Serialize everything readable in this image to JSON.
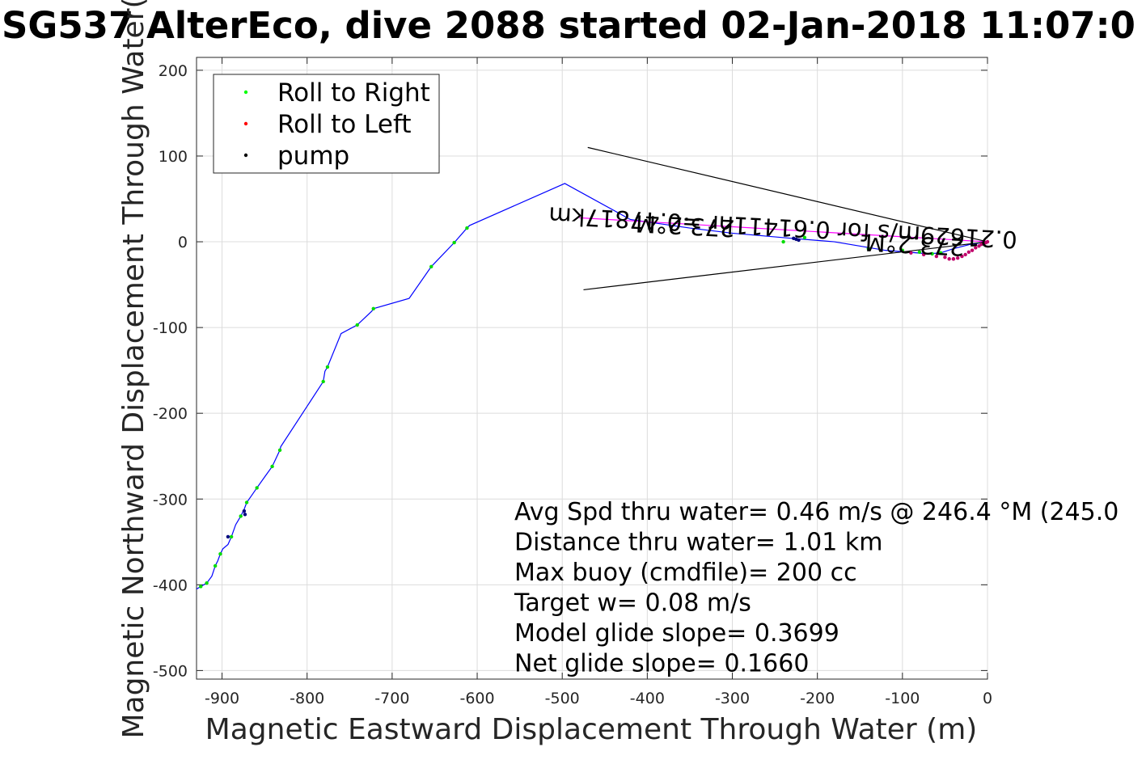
{
  "chart_data": {
    "type": "scatter",
    "title": "SG537 AlterEco, dive 2088 started 02-Jan-2018 11:07:0",
    "xlabel": "Magnetic Eastward Displacement Through Water (m)",
    "ylabel": "Magnetic Northward Displacement Through Water(",
    "xlim": [
      -930,
      0
    ],
    "ylim": [
      -510,
      215
    ],
    "xticks": [
      -900,
      -800,
      -700,
      -600,
      -500,
      -400,
      -300,
      -200,
      -100,
      0
    ],
    "yticks": [
      200,
      100,
      0,
      -100,
      -200,
      -300,
      -400,
      -500
    ],
    "grid": true,
    "legend_position": "top-left",
    "legend": [
      {
        "label": "Roll to Right",
        "color": "#00ff00"
      },
      {
        "label": "Roll to Left",
        "color": "#ff0000"
      },
      {
        "label": "pump",
        "color": "#000000"
      }
    ],
    "track": {
      "name": "track",
      "color": "#0000ff",
      "x": [
        -930,
        -925,
        -918,
        -912,
        -908,
        -905,
        -902,
        -899,
        -893,
        -889,
        -884,
        -878,
        -874,
        -871,
        -866,
        -859,
        -849,
        -841,
        -832,
        -831,
        -781,
        -779,
        -776,
        -760,
        -741,
        -724,
        -722,
        -680,
        -654,
        -627,
        -612,
        -609,
        -497,
        -420,
        -350,
        -300,
        -230,
        -180,
        -120,
        -70,
        -55,
        -40,
        -20,
        0
      ],
      "y": [
        -405,
        -402,
        -398,
        -390,
        -378,
        -372,
        -364,
        -358,
        -353,
        -344,
        -330,
        -320,
        -312,
        -304,
        -297,
        -287,
        -273,
        -262,
        -243,
        -239,
        -163,
        -151,
        -146,
        -107,
        -97,
        -81,
        -78,
        -66,
        -29,
        -1,
        16,
        19,
        68,
        26,
        16,
        10,
        4,
        0,
        -10,
        -14,
        -13,
        -8,
        -3,
        0
      ]
    },
    "roll_right_points": {
      "x": [
        -925,
        -918,
        -908,
        -902,
        -889,
        -878,
        -871,
        -859,
        -841,
        -832,
        -781,
        -776,
        -741,
        -722,
        -654,
        -627,
        -612,
        -240,
        -215,
        -140,
        -100,
        -80,
        -65,
        -55
      ],
      "y": [
        -402,
        -398,
        -378,
        -364,
        -344,
        -320,
        -304,
        -287,
        -262,
        -243,
        -163,
        -146,
        -97,
        -78,
        -29,
        -1,
        16,
        0,
        5,
        -8,
        -10,
        -12,
        -14,
        -13
      ]
    },
    "roll_left_points": {
      "x": [
        -50,
        -45,
        -40,
        -35,
        -30,
        -26,
        -22,
        -18,
        -14,
        -10,
        -7,
        -4,
        -2,
        0,
        -40,
        -60,
        -75,
        -90
      ],
      "y": [
        -18,
        -20,
        -20,
        -19,
        -17,
        -15,
        -12,
        -10,
        -7,
        -5,
        -3,
        -2,
        -1,
        0,
        -20,
        -17,
        -15,
        -13
      ]
    },
    "pump_points": {
      "x": [
        -893,
        -874,
        -873,
        -228,
        -225,
        -222
      ],
      "y": [
        -344,
        -314,
        -318,
        4,
        3,
        2
      ]
    },
    "model_line": {
      "color": "#000000",
      "x": [
        -470,
        0,
        -475
      ],
      "y": [
        110,
        0,
        -56
      ]
    },
    "fit_line": {
      "color": "#ff00ff",
      "x": [
        -480,
        0
      ],
      "y": [
        28,
        0
      ]
    },
    "annotations": [
      "Avg Spd thru water=  0.46 m/s @ 246.4 °M (245.0",
      "Distance thru water=  1.01 km",
      "Max buoy (cmdfile)= 200 cc",
      "Target w= 0.08 m/s",
      "Model glide slope= 0.3699",
      "Net glide slope= 0.1660"
    ],
    "rotated_labels": [
      {
        "text": "273.2°M",
        "x": -355,
        "y": 28,
        "angle_deg": 183
      },
      {
        "text": "0.21629m/s for 0.61411hr =0.47817km",
        "x": -240,
        "y": 26,
        "angle_deg": 183
      },
      {
        "text": "273.2°M",
        "x": -85,
        "y": 6,
        "angle_deg": 183
      }
    ]
  }
}
